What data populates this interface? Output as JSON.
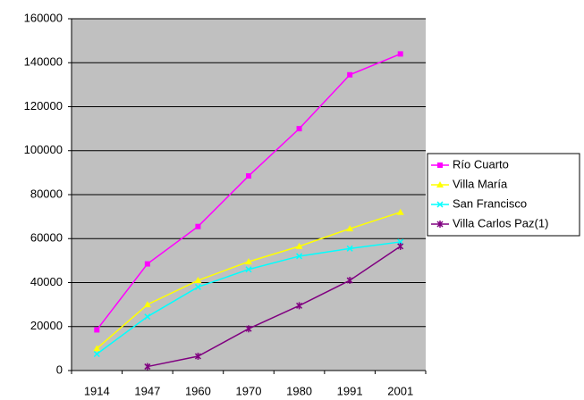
{
  "chart_data": {
    "type": "line",
    "categories": [
      "1914",
      "1947",
      "1960",
      "1970",
      "1980",
      "1991",
      "2001"
    ],
    "series": [
      {
        "name": "Río Cuarto",
        "color": "#ff00ff",
        "marker": "square",
        "values": [
          18500,
          48500,
          65500,
          88500,
          110000,
          134500,
          144000
        ]
      },
      {
        "name": "Villa María",
        "color": "#ffff00",
        "marker": "triangle",
        "values": [
          10000,
          30000,
          41000,
          49500,
          56500,
          64500,
          72000
        ]
      },
      {
        "name": "San Francisco",
        "color": "#00ffff",
        "marker": "x",
        "values": [
          7500,
          24500,
          38000,
          46000,
          52000,
          55500,
          58500
        ]
      },
      {
        "name": "Villa Carlos Paz(1)",
        "color": "#800080",
        "marker": "star",
        "values": [
          null,
          1800,
          6500,
          19000,
          29500,
          41000,
          56500
        ]
      }
    ],
    "ylim": [
      0,
      160000
    ],
    "yticks": [
      0,
      20000,
      40000,
      60000,
      80000,
      100000,
      120000,
      140000,
      160000
    ],
    "grid": true,
    "legend": "right"
  }
}
